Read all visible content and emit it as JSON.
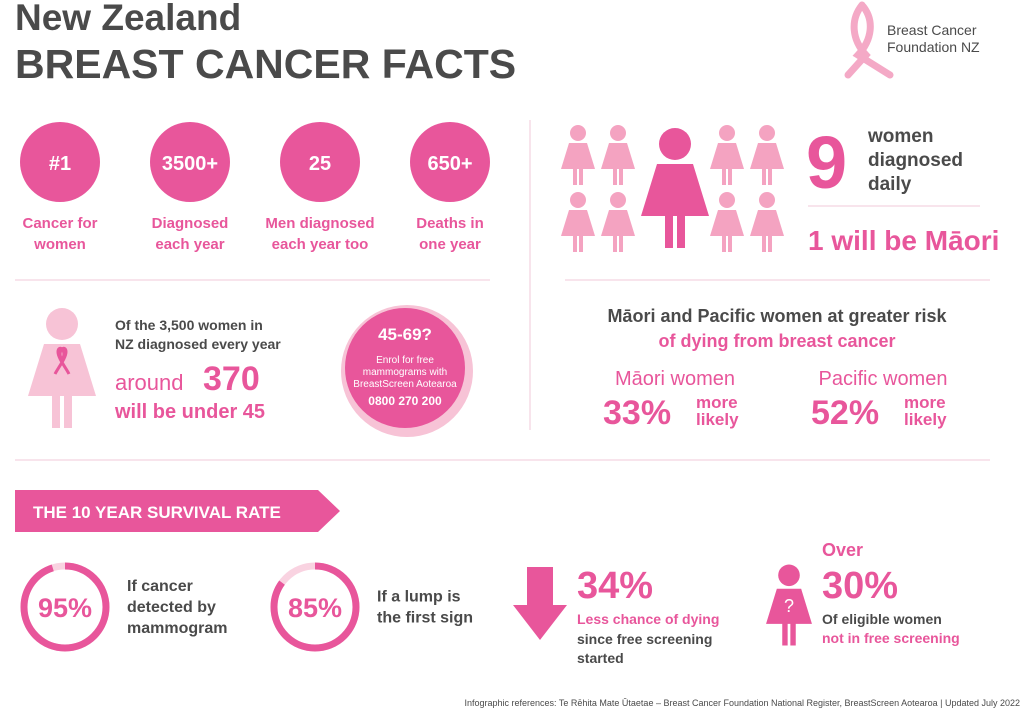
{
  "header": {
    "title_line1": "New Zealand",
    "title_line2": "BREAST CANCER FACTS",
    "logo": [
      "Breast Cancer",
      "Foundation NZ"
    ]
  },
  "stats": [
    {
      "value": "#1",
      "label": [
        "Cancer for",
        "women"
      ]
    },
    {
      "value": "3500+",
      "label": [
        "Diagnosed",
        "each year"
      ]
    },
    {
      "value": "25",
      "label": [
        "Men diagnosed",
        "each year too"
      ]
    },
    {
      "value": "650+",
      "label": [
        "Deaths in",
        "one year"
      ]
    }
  ],
  "daily": {
    "number": "9",
    "text": [
      "women",
      "diagnosed",
      "daily"
    ],
    "maori": "1 will be Māori"
  },
  "under45": {
    "text": [
      "Of the 3,500 women in",
      "NZ diagnosed every year"
    ],
    "around": "around",
    "number": "370",
    "under": "will be under 45"
  },
  "screening": {
    "ages": "45-69?",
    "text": [
      "Enrol for free",
      "mammograms with",
      "BreastScreen Aotearoa"
    ],
    "phone": "0800 270 200"
  },
  "risk": {
    "title": "Māori and Pacific women at greater risk",
    "subtitle": "of dying from breast cancer",
    "groups": [
      {
        "name": "Māori women",
        "value": "33%",
        "more": [
          "more",
          "likely"
        ]
      },
      {
        "name": "Pacific women",
        "value": "52%",
        "more": [
          "more",
          "likely"
        ]
      }
    ]
  },
  "survival": {
    "title": "THE 10 YEAR SURVIVAL RATE",
    "rates": [
      {
        "value": 95,
        "label": "95%",
        "text": [
          "If cancer",
          "detected by",
          "mammogram"
        ]
      },
      {
        "value": 85,
        "label": "85%",
        "text": [
          "If a lump is",
          "the first sign"
        ]
      }
    ]
  },
  "screening_impact": {
    "value": "34%",
    "text": "Less chance of dying",
    "more": [
      "since free screening",
      "started"
    ]
  },
  "not_screened": {
    "over": "Over",
    "value": "30%",
    "text": "Of eligible women",
    "pink": "not in free screening"
  },
  "footer": "Infographic references: Te Rēhita Mate Ūtaetae – Breast Cancer Foundation National Register, BreastScreen Aotearoa | Updated July 2022"
}
